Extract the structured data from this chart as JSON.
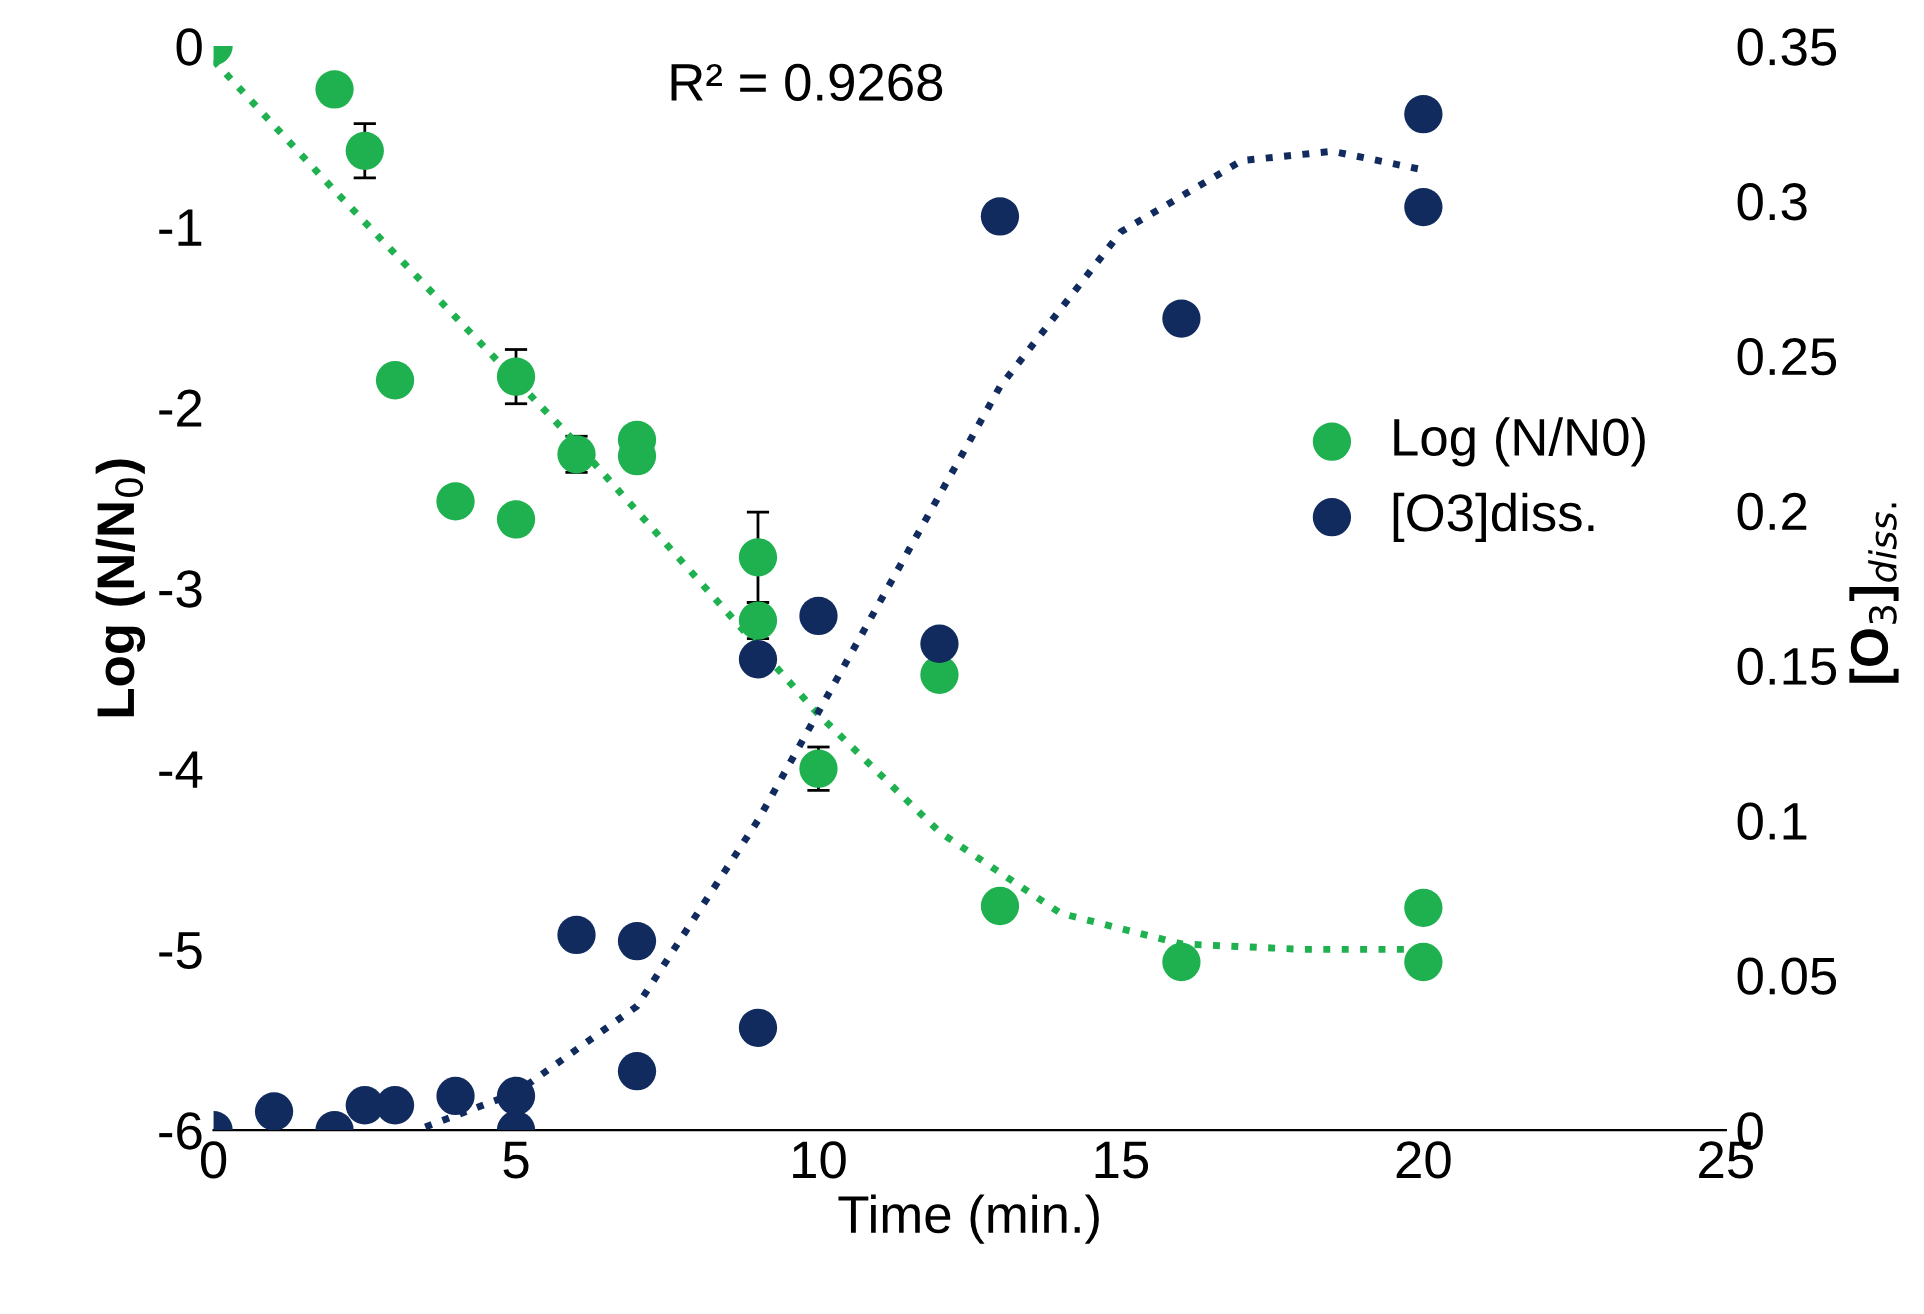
{
  "chart_data": {
    "type": "scatter",
    "xlabel": "Time (min.)",
    "ylabel": "Log (N/N$_{0}$)",
    "y2label": "[O$_{3}$]$_{diss.}$",
    "annotations": [
      "R² = 0.9268"
    ],
    "xlim": [
      0,
      25
    ],
    "xticks": [
      0,
      5,
      10,
      15,
      20,
      25
    ],
    "ylim": [
      -6,
      0
    ],
    "yticks": [
      -6,
      -5,
      -4,
      -3,
      -2,
      -1,
      0
    ],
    "y2lim": [
      0,
      0.35
    ],
    "y2ticks": [
      0,
      0.05,
      0.1,
      0.15,
      0.2,
      0.25,
      0.3,
      0.35
    ],
    "grid": false,
    "legend": "right",
    "marker": "circle",
    "series": [
      {
        "name": "Log (N/N0)",
        "color": "#1fb14f",
        "x": [
          0,
          2,
          2.5,
          3,
          4,
          5,
          5,
          6,
          7,
          7,
          9,
          9,
          10,
          12,
          13,
          16,
          20,
          20
        ],
        "values": [
          0,
          -0.24,
          -0.58,
          -1.85,
          -2.52,
          -1.83,
          -2.62,
          -2.26,
          -2.18,
          -2.27,
          -2.83,
          -3.18,
          -4.0,
          -3.48,
          -4.76,
          -5.07,
          -4.77,
          -5.07
        ],
        "errors": [
          null,
          null,
          0.15,
          null,
          null,
          0.15,
          null,
          0.1,
          null,
          null,
          0.25,
          0.1,
          0.12,
          null,
          null,
          null,
          null,
          null
        ]
      },
      {
        "name": "[O3]diss.",
        "color": "#112b5e",
        "axis": "y2",
        "x": [
          0,
          1,
          2,
          2.5,
          3,
          4,
          5,
          5,
          6,
          7,
          7,
          9,
          9,
          10,
          12,
          13,
          16,
          20,
          20
        ],
        "values": [
          0,
          0.006,
          0,
          0.008,
          0.008,
          0.011,
          0.011,
          0,
          0.063,
          0.061,
          0.019,
          0.033,
          0.152,
          0.166,
          0.157,
          0.295,
          0.262,
          0.328,
          0.298
        ]
      },
      {
        "type": "line",
        "line_style": "dotted",
        "marker": "none",
        "color": "#1fb14f",
        "x": [
          0,
          2,
          4,
          6,
          8,
          10,
          12,
          14,
          16,
          18,
          20
        ],
        "values": [
          -0.08,
          -0.8,
          -1.5,
          -2.2,
          -2.95,
          -3.7,
          -4.35,
          -4.8,
          -4.97,
          -5.0,
          -5.0
        ]
      },
      {
        "type": "line",
        "line_style": "dotted",
        "marker": "none",
        "color": "#112b5e",
        "axis": "y2",
        "x": [
          3.5,
          5,
          7,
          9,
          11,
          13,
          15,
          17,
          18.5,
          20
        ],
        "values": [
          0.001,
          0.012,
          0.04,
          0.1,
          0.17,
          0.24,
          0.29,
          0.313,
          0.316,
          0.31
        ]
      }
    ]
  }
}
